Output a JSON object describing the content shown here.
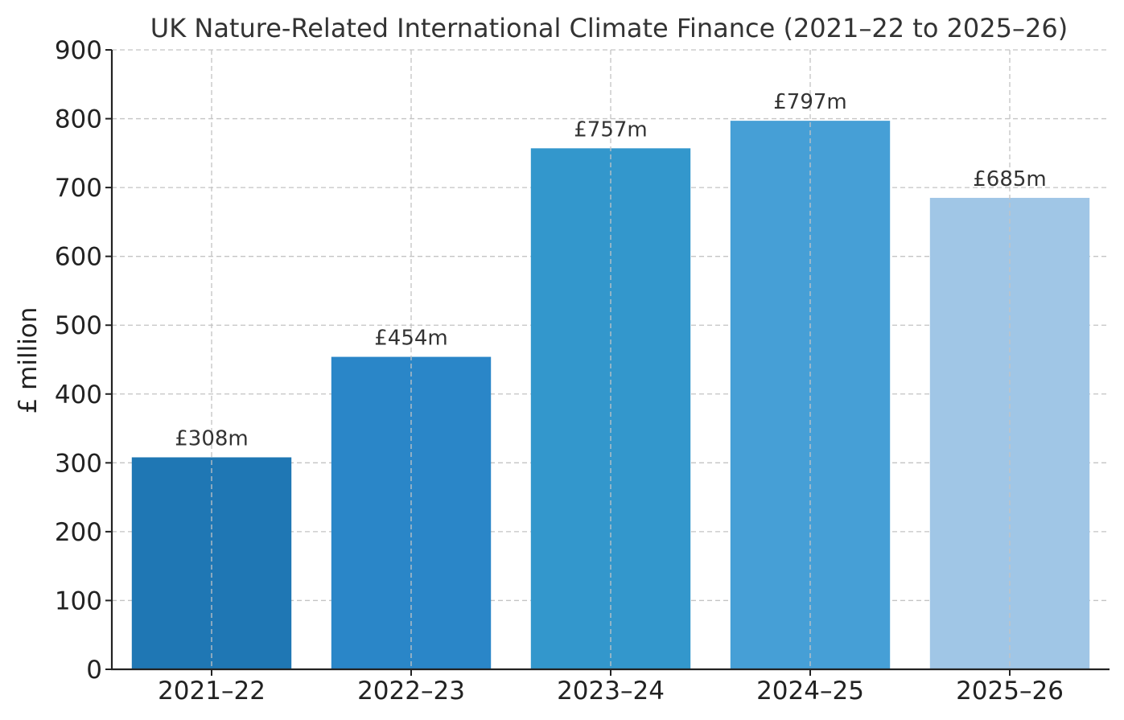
{
  "chart_data": {
    "type": "bar",
    "title": "UK Nature-Related International Climate Finance (2021–22 to 2025–26)",
    "xlabel": "",
    "ylabel": "£ million",
    "categories": [
      "2021–22",
      "2022–23",
      "2023–24",
      "2024–25",
      "2025–26"
    ],
    "values": [
      308,
      454,
      757,
      797,
      685
    ],
    "data_labels": [
      "£308m",
      "£454m",
      "£757m",
      "£797m",
      "£685m"
    ],
    "bar_colors": [
      "#1f77b4",
      "#2a86c8",
      "#3397cc",
      "#469fd6",
      "#a0c6e6"
    ],
    "ylim": [
      0,
      900
    ],
    "yticks": [
      0,
      100,
      200,
      300,
      400,
      500,
      600,
      700,
      800,
      900
    ],
    "grid": true,
    "legend": "none"
  }
}
